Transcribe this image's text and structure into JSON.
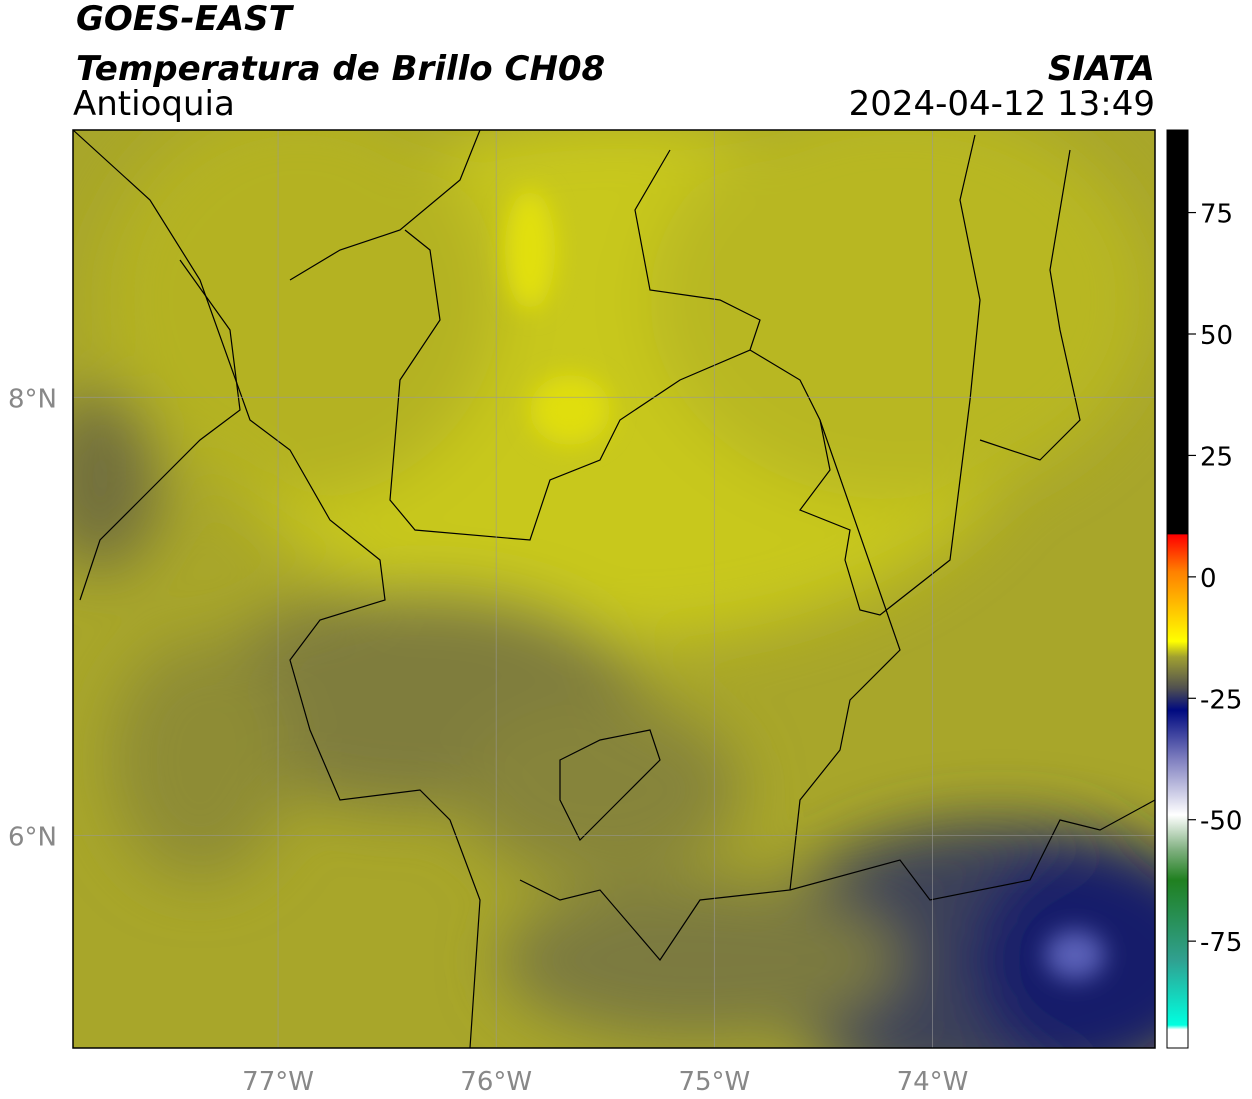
{
  "header": {
    "line1": "GOES-EAST",
    "line2": "Temperatura de Brillo CH08",
    "region": "Antioquia",
    "source": "SIATA",
    "datetime": "2024-04-12 13:49"
  },
  "map": {
    "xlim": [
      -77.94,
      -72.98
    ],
    "ylim": [
      5.03,
      9.22
    ],
    "xticks": [
      {
        "value": -77,
        "label": "77°W"
      },
      {
        "value": -76,
        "label": "76°W"
      },
      {
        "value": -75,
        "label": "75°W"
      },
      {
        "value": -74,
        "label": "74°W"
      }
    ],
    "yticks": [
      {
        "value": 8,
        "label": "8°N"
      },
      {
        "value": 6,
        "label": "6°N"
      }
    ]
  },
  "colorbar": {
    "lim": [
      -97,
      92
    ],
    "ticks": [
      75,
      50,
      25,
      0,
      -25,
      -50,
      -75
    ]
  }
}
